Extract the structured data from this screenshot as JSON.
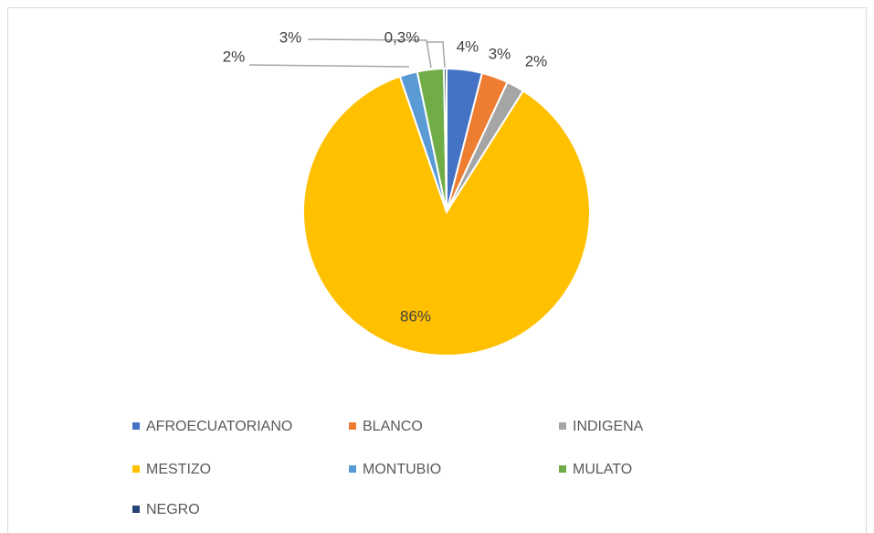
{
  "chart_data": {
    "type": "pie",
    "categories": [
      "AFROECUATORIANO",
      "BLANCO",
      "INDIGENA",
      "MESTIZO",
      "MONTUBIO",
      "MULATO",
      "NEGRO"
    ],
    "values": [
      4,
      3,
      2,
      86,
      2,
      3,
      0.3
    ],
    "value_labels": [
      "4%",
      "3%",
      "2%",
      "86%",
      "2%",
      "3%",
      "0,3%"
    ],
    "colors": [
      "#4472c4",
      "#ed7d31",
      "#a5a5a5",
      "#ffc000",
      "#5b9bd5",
      "#70ad47",
      "#264478"
    ],
    "legend": "bottom"
  }
}
